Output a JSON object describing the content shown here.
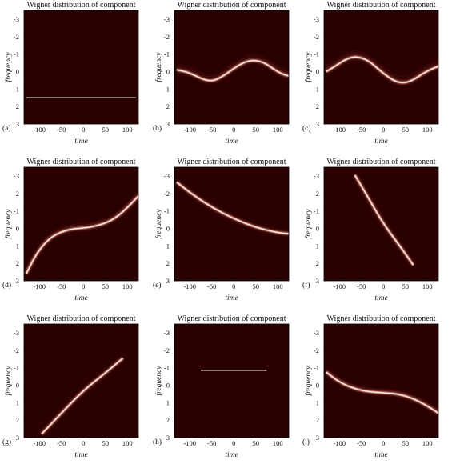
{
  "colors": {
    "background": "#2a0000",
    "ridge_core": "#fff4ec",
    "ridge_mid": "#d9a08c",
    "ridge_edge": "#6e2222"
  },
  "chart_data": [
    {
      "id": "a",
      "panel_label": "(a)",
      "type": "heatmap",
      "title": "Wigner distribution of component",
      "xlabel": "time",
      "ylabel": "frequency",
      "xlim": [
        -135,
        125
      ],
      "ylim": [
        -3.5,
        3
      ],
      "x_ticks": [
        -100,
        -50,
        0,
        50,
        100
      ],
      "y_ticks": [
        -3,
        -2,
        -1,
        0,
        1,
        2,
        3
      ],
      "ridge": {
        "t": [
          -130,
          -100,
          -50,
          0,
          50,
          100,
          120
        ],
        "f": [
          1.5,
          1.5,
          1.5,
          1.5,
          1.5,
          1.5,
          1.5
        ]
      }
    },
    {
      "id": "b",
      "panel_label": "(b)",
      "type": "heatmap",
      "title": "Wigner distribution of component",
      "xlabel": "time",
      "ylabel": "frequency",
      "xlim": [
        -135,
        125
      ],
      "ylim": [
        -3.5,
        3
      ],
      "x_ticks": [
        -100,
        -50,
        0,
        50,
        100
      ],
      "y_ticks": [
        -3,
        -2,
        -1,
        0,
        1,
        2,
        3
      ],
      "ridge": {
        "t": [
          -130,
          -110,
          -90,
          -70,
          -50,
          -30,
          -10,
          10,
          30,
          50,
          70,
          90,
          110,
          125
        ],
        "f": [
          -0.1,
          0.0,
          0.2,
          0.45,
          0.55,
          0.35,
          0.0,
          -0.35,
          -0.6,
          -0.65,
          -0.5,
          -0.15,
          0.15,
          0.25
        ]
      },
      "spread": 0.35
    },
    {
      "id": "c",
      "panel_label": "(c)",
      "type": "heatmap",
      "title": "Wigner distribution of component",
      "xlabel": "time",
      "ylabel": "frequency",
      "xlim": [
        -135,
        125
      ],
      "ylim": [
        -3.5,
        3
      ],
      "x_ticks": [
        -100,
        -50,
        0,
        50,
        100
      ],
      "y_ticks": [
        -3,
        -2,
        -1,
        0,
        1,
        2,
        3
      ],
      "ridge": {
        "t": [
          -130,
          -110,
          -90,
          -70,
          -50,
          -30,
          -10,
          10,
          30,
          50,
          70,
          90,
          110,
          125
        ],
        "f": [
          0.0,
          -0.3,
          -0.65,
          -0.85,
          -0.8,
          -0.55,
          -0.1,
          0.3,
          0.6,
          0.65,
          0.45,
          0.1,
          -0.15,
          -0.3
        ]
      },
      "spread": 0.35
    },
    {
      "id": "d",
      "panel_label": "(d)",
      "type": "heatmap",
      "title": "Wigner distribution of component",
      "xlabel": "time",
      "ylabel": "frequency",
      "xlim": [
        -135,
        125
      ],
      "ylim": [
        -3.5,
        3
      ],
      "x_ticks": [
        -100,
        -50,
        0,
        50,
        100
      ],
      "y_ticks": [
        -3,
        -2,
        -1,
        0,
        1,
        2,
        3
      ],
      "ridge": {
        "t": [
          -130,
          -110,
          -90,
          -70,
          -50,
          -30,
          -10,
          10,
          30,
          50,
          70,
          90,
          110,
          125
        ],
        "f": [
          2.6,
          1.6,
          0.9,
          0.45,
          0.2,
          0.05,
          0.0,
          -0.05,
          -0.15,
          -0.3,
          -0.55,
          -0.95,
          -1.45,
          -1.85
        ]
      },
      "spread": 0.25
    },
    {
      "id": "e",
      "panel_label": "(e)",
      "type": "heatmap",
      "title": "Wigner distribution of component",
      "xlabel": "time",
      "ylabel": "frequency",
      "xlim": [
        -135,
        125
      ],
      "ylim": [
        -3.5,
        3
      ],
      "x_ticks": [
        -100,
        -50,
        0,
        50,
        100
      ],
      "y_ticks": [
        -3,
        -2,
        -1,
        0,
        1,
        2,
        3
      ],
      "ridge": {
        "t": [
          -130,
          -100,
          -50,
          0,
          50,
          100,
          125
        ],
        "f": [
          -2.65,
          -2.05,
          -1.2,
          -0.55,
          -0.05,
          0.25,
          0.3
        ]
      }
    },
    {
      "id": "f",
      "panel_label": "(f)",
      "type": "heatmap",
      "title": "Wigner distribution of component",
      "xlabel": "time",
      "ylabel": "frequency",
      "xlim": [
        -135,
        125
      ],
      "ylim": [
        -3.5,
        3
      ],
      "x_ticks": [
        -100,
        -50,
        0,
        50,
        100
      ],
      "y_ticks": [
        -3,
        -2,
        -1,
        0,
        1,
        2,
        3
      ],
      "ridge": {
        "t": [
          -65,
          -40,
          0,
          40,
          68
        ],
        "f": [
          -3.05,
          -2.0,
          -0.25,
          1.1,
          2.1
        ]
      }
    },
    {
      "id": "g",
      "panel_label": "(g)",
      "type": "heatmap",
      "title": "Wigner distribution of component",
      "xlabel": "time",
      "ylabel": "frequency",
      "xlim": [
        -135,
        125
      ],
      "ylim": [
        -3.5,
        3
      ],
      "x_ticks": [
        -100,
        -50,
        0,
        50,
        100
      ],
      "y_ticks": [
        -3,
        -2,
        -1,
        0,
        1,
        2,
        3
      ],
      "ridge": {
        "t": [
          -95,
          -50,
          0,
          50,
          90
        ],
        "f": [
          2.8,
          1.6,
          0.3,
          -0.7,
          -1.55
        ]
      }
    },
    {
      "id": "h",
      "panel_label": "(h)",
      "type": "heatmap",
      "title": "Wigner distribution of component",
      "xlabel": "time",
      "ylabel": "frequency",
      "xlim": [
        -135,
        125
      ],
      "ylim": [
        -3.5,
        3
      ],
      "x_ticks": [
        -100,
        -50,
        0,
        50,
        100
      ],
      "y_ticks": [
        -3,
        -2,
        -1,
        0,
        1,
        2,
        3
      ],
      "ridge": {
        "t": [
          -75,
          -40,
          0,
          40,
          75
        ],
        "f": [
          -0.85,
          -0.85,
          -0.85,
          -0.85,
          -0.85
        ]
      }
    },
    {
      "id": "i",
      "panel_label": "(i)",
      "type": "heatmap",
      "title": "Wigner distribution of component",
      "xlabel": "time",
      "ylabel": "frequency",
      "xlim": [
        -135,
        125
      ],
      "ylim": [
        -3.5,
        3
      ],
      "x_ticks": [
        -100,
        -50,
        0,
        50,
        100
      ],
      "y_ticks": [
        -3,
        -2,
        -1,
        0,
        1,
        2,
        3
      ],
      "ridge": {
        "t": [
          -130,
          -110,
          -90,
          -70,
          -50,
          -30,
          -10,
          10,
          30,
          50,
          70,
          90,
          110,
          125
        ],
        "f": [
          -0.75,
          -0.35,
          -0.05,
          0.15,
          0.3,
          0.38,
          0.42,
          0.45,
          0.5,
          0.62,
          0.8,
          1.05,
          1.35,
          1.6
        ]
      },
      "spread": 0.2
    }
  ]
}
